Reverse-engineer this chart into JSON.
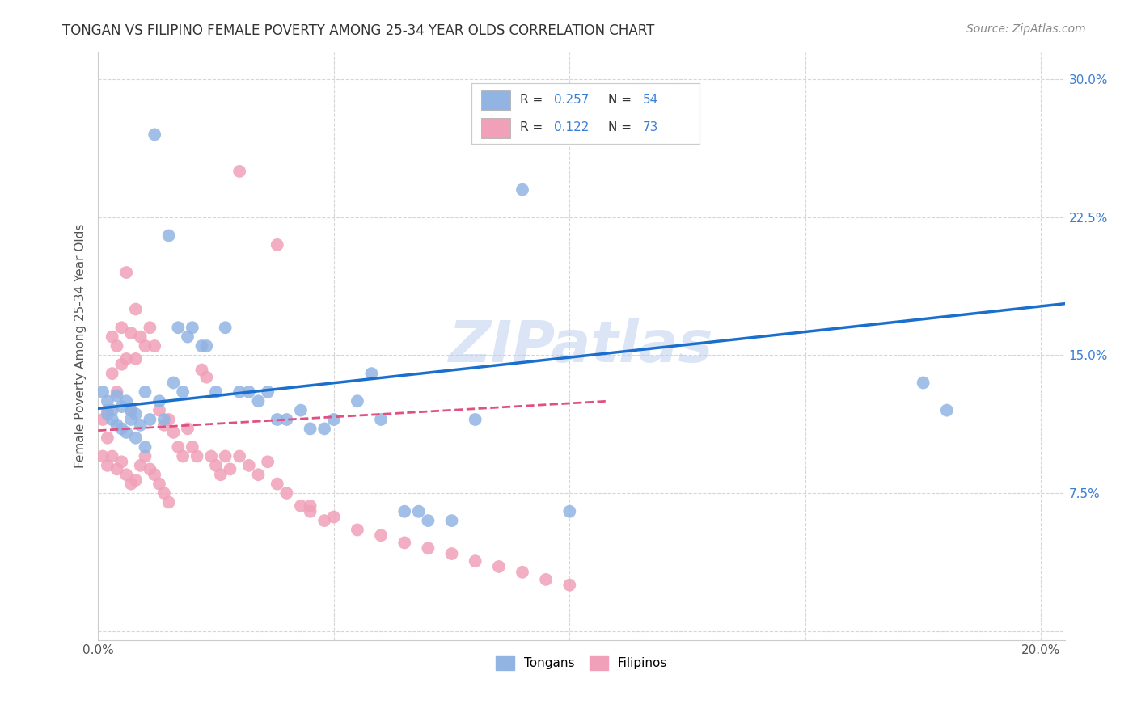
{
  "title": "TONGAN VS FILIPINO FEMALE POVERTY AMONG 25-34 YEAR OLDS CORRELATION CHART",
  "source": "Source: ZipAtlas.com",
  "ylabel": "Female Poverty Among 25-34 Year Olds",
  "background_color": "#ffffff",
  "watermark": "ZIPatlas",
  "tongan_R": 0.257,
  "tongan_N": 54,
  "filipino_R": 0.122,
  "filipino_N": 73,
  "tongan_color": "#92b4e3",
  "filipino_color": "#f0a0b8",
  "tongan_line_color": "#1a6fcc",
  "filipino_line_color": "#e05080",
  "grid_color": "#cccccc",
  "title_color": "#333333",
  "legend_R_color": "#3a7fd5",
  "tongan_x": [
    0.001,
    0.002,
    0.002,
    0.003,
    0.003,
    0.004,
    0.004,
    0.005,
    0.005,
    0.006,
    0.006,
    0.007,
    0.007,
    0.008,
    0.008,
    0.009,
    0.01,
    0.01,
    0.011,
    0.012,
    0.013,
    0.014,
    0.015,
    0.016,
    0.017,
    0.018,
    0.019,
    0.02,
    0.022,
    0.023,
    0.025,
    0.027,
    0.03,
    0.032,
    0.034,
    0.036,
    0.038,
    0.04,
    0.043,
    0.045,
    0.048,
    0.05,
    0.055,
    0.058,
    0.06,
    0.065,
    0.068,
    0.07,
    0.075,
    0.08,
    0.09,
    0.1,
    0.175,
    0.18
  ],
  "tongan_y": [
    0.13,
    0.125,
    0.118,
    0.12,
    0.115,
    0.128,
    0.112,
    0.122,
    0.11,
    0.125,
    0.108,
    0.115,
    0.12,
    0.118,
    0.105,
    0.112,
    0.13,
    0.1,
    0.115,
    0.27,
    0.125,
    0.115,
    0.215,
    0.135,
    0.165,
    0.13,
    0.16,
    0.165,
    0.155,
    0.155,
    0.13,
    0.165,
    0.13,
    0.13,
    0.125,
    0.13,
    0.115,
    0.115,
    0.12,
    0.11,
    0.11,
    0.115,
    0.125,
    0.14,
    0.115,
    0.065,
    0.065,
    0.06,
    0.06,
    0.115,
    0.24,
    0.065,
    0.135,
    0.12
  ],
  "filipino_x": [
    0.001,
    0.001,
    0.002,
    0.002,
    0.002,
    0.003,
    0.003,
    0.003,
    0.004,
    0.004,
    0.004,
    0.005,
    0.005,
    0.005,
    0.006,
    0.006,
    0.006,
    0.007,
    0.007,
    0.007,
    0.008,
    0.008,
    0.008,
    0.009,
    0.009,
    0.01,
    0.01,
    0.011,
    0.011,
    0.012,
    0.012,
    0.013,
    0.013,
    0.014,
    0.014,
    0.015,
    0.015,
    0.016,
    0.017,
    0.018,
    0.019,
    0.02,
    0.021,
    0.022,
    0.023,
    0.024,
    0.025,
    0.026,
    0.027,
    0.028,
    0.03,
    0.032,
    0.034,
    0.036,
    0.038,
    0.04,
    0.043,
    0.045,
    0.048,
    0.05,
    0.055,
    0.06,
    0.065,
    0.07,
    0.075,
    0.08,
    0.085,
    0.09,
    0.095,
    0.1,
    0.03,
    0.038,
    0.045
  ],
  "filipino_y": [
    0.115,
    0.095,
    0.12,
    0.105,
    0.09,
    0.16,
    0.14,
    0.095,
    0.155,
    0.13,
    0.088,
    0.165,
    0.145,
    0.092,
    0.195,
    0.148,
    0.085,
    0.162,
    0.12,
    0.08,
    0.175,
    0.148,
    0.082,
    0.16,
    0.09,
    0.155,
    0.095,
    0.165,
    0.088,
    0.155,
    0.085,
    0.12,
    0.08,
    0.112,
    0.075,
    0.115,
    0.07,
    0.108,
    0.1,
    0.095,
    0.11,
    0.1,
    0.095,
    0.142,
    0.138,
    0.095,
    0.09,
    0.085,
    0.095,
    0.088,
    0.095,
    0.09,
    0.085,
    0.092,
    0.08,
    0.075,
    0.068,
    0.065,
    0.06,
    0.062,
    0.055,
    0.052,
    0.048,
    0.045,
    0.042,
    0.038,
    0.035,
    0.032,
    0.028,
    0.025,
    0.25,
    0.21,
    0.068
  ],
  "tongan_line_x": [
    0.0,
    0.205
  ],
  "tongan_line_y": [
    0.121,
    0.178
  ],
  "filipino_line_x": [
    0.0,
    0.108
  ],
  "filipino_line_y": [
    0.109,
    0.125
  ],
  "xlim": [
    0.0,
    0.205
  ],
  "ylim": [
    -0.005,
    0.315
  ]
}
